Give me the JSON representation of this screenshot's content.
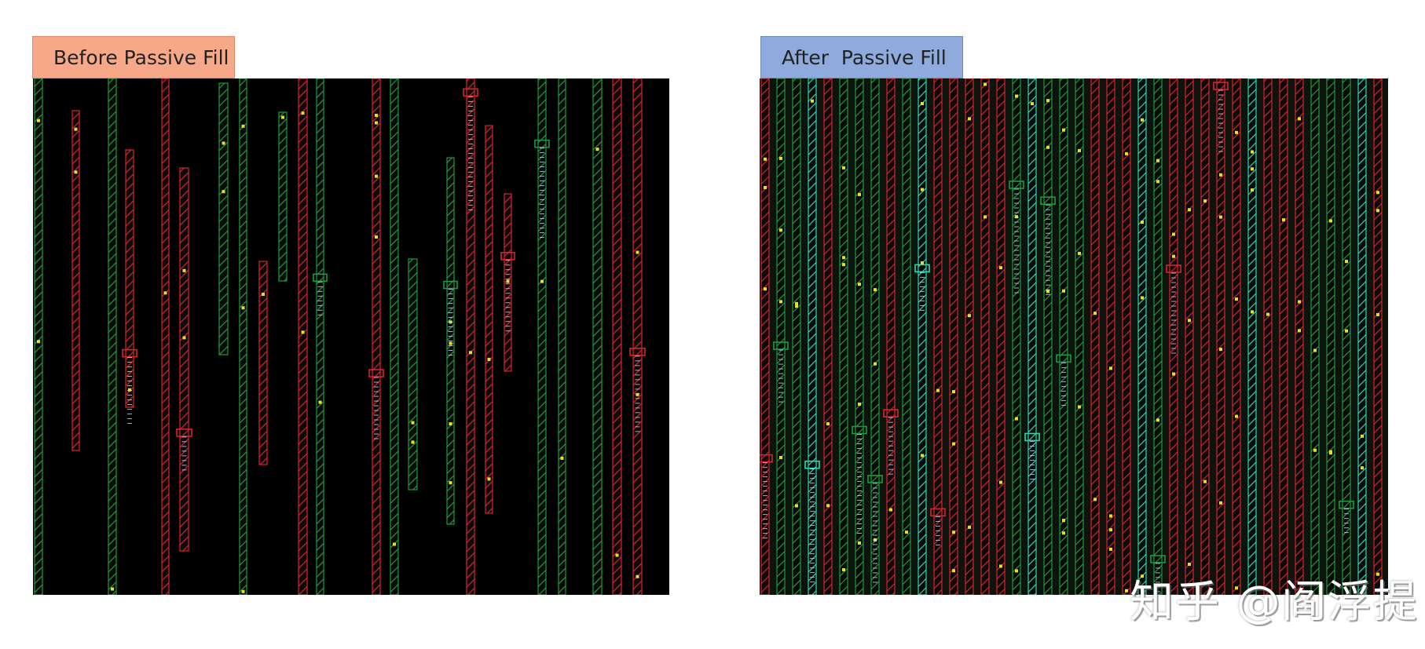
{
  "before": {
    "label": "Before Passive Fill",
    "description": "sparse metal track layout with black gaps"
  },
  "after": {
    "label": "After  Passive Fill",
    "description": "dense metal track layout fully filled"
  },
  "watermark": "知乎 @阎浮提",
  "colors": {
    "background": "#000000",
    "red_track": "#d8232a",
    "green_track": "#1f9a3a",
    "cyan_track": "#2fd6b0",
    "via_yellow": "#e8e020"
  }
}
